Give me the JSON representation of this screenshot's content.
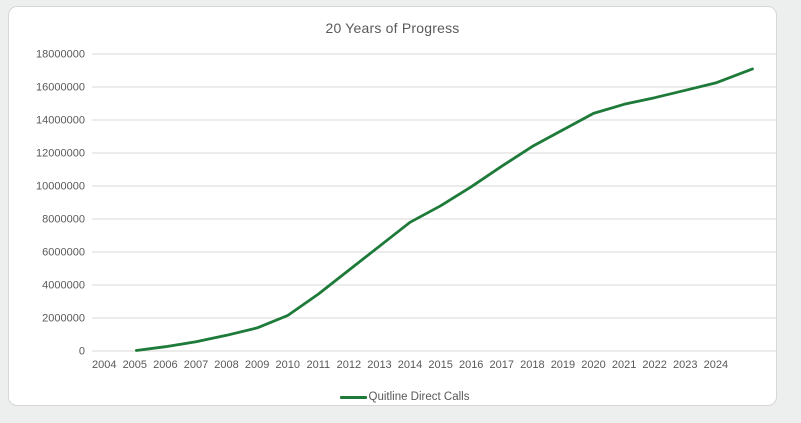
{
  "page": {
    "background": "#edefee"
  },
  "chart_data": {
    "type": "line",
    "title": "20 Years of Progress",
    "xlabel": "",
    "ylabel": "",
    "x_ticks": [
      "2004",
      "2005",
      "2006",
      "2007",
      "2008",
      "2009",
      "2010",
      "2011",
      "2012",
      "2013",
      "2014",
      "2015",
      "2016",
      "2017",
      "2018",
      "2019",
      "2020",
      "2021",
      "2022",
      "2023",
      "2024"
    ],
    "y_ticks": [
      0,
      2000000,
      4000000,
      6000000,
      8000000,
      10000000,
      12000000,
      14000000,
      16000000,
      18000000
    ],
    "y_tick_labels": [
      "0",
      "2000000",
      "4000000",
      "6000000",
      "8000000",
      "10000000",
      "12000000",
      "14000000",
      "16000000",
      "18000000"
    ],
    "x_range": [
      2003.6,
      2026.0
    ],
    "y_range": [
      0,
      18000000
    ],
    "grid": "horizontal",
    "legend_position": "bottom",
    "series": [
      {
        "name": "Quitline Direct Calls",
        "color": "#1d7a38",
        "points": [
          {
            "x": 2005.05,
            "y": 30000
          },
          {
            "x": 2006,
            "y": 260000
          },
          {
            "x": 2007,
            "y": 560000
          },
          {
            "x": 2008,
            "y": 950000
          },
          {
            "x": 2009,
            "y": 1400000
          },
          {
            "x": 2010,
            "y": 2150000
          },
          {
            "x": 2011,
            "y": 3450000
          },
          {
            "x": 2012,
            "y": 4900000
          },
          {
            "x": 2013,
            "y": 6350000
          },
          {
            "x": 2014,
            "y": 7800000
          },
          {
            "x": 2015,
            "y": 8800000
          },
          {
            "x": 2016,
            "y": 9950000
          },
          {
            "x": 2017,
            "y": 11200000
          },
          {
            "x": 2018,
            "y": 12400000
          },
          {
            "x": 2019,
            "y": 13400000
          },
          {
            "x": 2020,
            "y": 14400000
          },
          {
            "x": 2021,
            "y": 14950000
          },
          {
            "x": 2022,
            "y": 15350000
          },
          {
            "x": 2023,
            "y": 15800000
          },
          {
            "x": 2024,
            "y": 16250000
          },
          {
            "x": 2025.2,
            "y": 17100000
          }
        ]
      }
    ],
    "colors": {
      "text": "#595959",
      "gridline": "#d9d9d9"
    }
  }
}
